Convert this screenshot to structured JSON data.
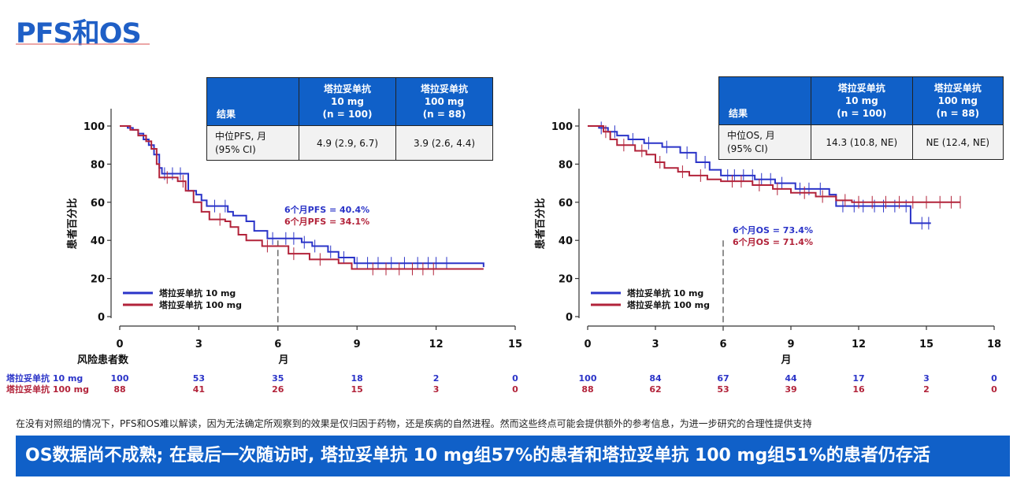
{
  "page": {
    "title": "PFS和OS",
    "note": "在没有对照组的情况下，PFS和OS难以解读，因为无法确定所观察到的效果是仅归因于药物，还是疾病的自然进程。然而这些终点可能会提供额外的参考信息，为进一步研究的合理性提供支持",
    "banner": "OS数据尚不成熟; 在最后一次随访时, 塔拉妥单抗 10 mg组57%的患者和塔拉妥单抗 100 mg组51%的患者仍存活"
  },
  "colors": {
    "blue": "#2b34c8",
    "red": "#b2233a",
    "header": "#1060c8"
  },
  "pfs_table": {
    "col0": "结果",
    "col1": [
      "塔拉妥单抗",
      "10 mg",
      "(n = 100)"
    ],
    "col2": [
      "塔拉妥单抗",
      "100 mg",
      "(n = 88)"
    ],
    "row_label": [
      "中位PFS, 月",
      "(95% CI)"
    ],
    "v1": "4.9 (2.9, 6.7)",
    "v2": "3.9 (2.6, 4.4)"
  },
  "os_table": {
    "col0": "结果",
    "col1": [
      "塔拉妥单抗",
      "10 mg",
      "(n = 100)"
    ],
    "col2": [
      "塔拉妥单抗",
      "100 mg",
      "(n = 88)"
    ],
    "row_label": [
      "中位OS, 月",
      "(95% CI)"
    ],
    "v1": "14.3 (10.8, NE)",
    "v2": "NE (12.4, NE)"
  },
  "chart_data": [
    {
      "type": "line",
      "name": "PFS",
      "ylabel": "患者百分比",
      "xlabel": "月",
      "xlim": [
        0,
        15
      ],
      "ylim": [
        0,
        110
      ],
      "xticks": [
        0,
        3,
        6,
        9,
        12,
        15
      ],
      "yticks": [
        0,
        20,
        40,
        60,
        80,
        100
      ],
      "legend": [
        "塔拉妥单抗 10 mg",
        "塔拉妥单抗 100 mg"
      ],
      "legend_position": "bottom-left",
      "annotation_lines": [
        "6个月PFS = 40.4%",
        "6个月PFS = 34.1%"
      ],
      "reference_x": 6,
      "series": [
        {
          "name": "塔拉妥单抗 10 mg",
          "points": [
            [
              0,
              100
            ],
            [
              0.3,
              99
            ],
            [
              0.5,
              98
            ],
            [
              0.7,
              96
            ],
            [
              0.9,
              93
            ],
            [
              1.1,
              90
            ],
            [
              1.3,
              85
            ],
            [
              1.5,
              78
            ],
            [
              1.6,
              75
            ],
            [
              2.5,
              75
            ],
            [
              2.6,
              66
            ],
            [
              2.9,
              64
            ],
            [
              3.1,
              61
            ],
            [
              3.3,
              58
            ],
            [
              4.1,
              55
            ],
            [
              4.3,
              53
            ],
            [
              4.8,
              50
            ],
            [
              5.1,
              45
            ],
            [
              5.6,
              41
            ],
            [
              6.9,
              39
            ],
            [
              7.3,
              37
            ],
            [
              7.9,
              34
            ],
            [
              8.3,
              31
            ],
            [
              8.9,
              28
            ],
            [
              13.8,
              26
            ]
          ],
          "censors": [
            1.7,
            2.0,
            2.3,
            3.6,
            4.0,
            5.8,
            6.3,
            6.6,
            7.0,
            7.4,
            8.0,
            8.5,
            9.0,
            9.4,
            9.8,
            10.3,
            10.8,
            11.3,
            11.7,
            12.0,
            12.4
          ]
        },
        {
          "name": "塔拉妥单抗 100 mg",
          "points": [
            [
              0,
              100
            ],
            [
              0.4,
              98
            ],
            [
              0.7,
              95
            ],
            [
              1.0,
              92
            ],
            [
              1.2,
              88
            ],
            [
              1.4,
              80
            ],
            [
              1.5,
              73
            ],
            [
              2.2,
              71
            ],
            [
              2.5,
              66
            ],
            [
              2.8,
              60
            ],
            [
              3.1,
              55
            ],
            [
              3.4,
              51
            ],
            [
              4.0,
              50
            ],
            [
              4.2,
              47
            ],
            [
              4.5,
              43
            ],
            [
              4.8,
              40
            ],
            [
              5.4,
              37
            ],
            [
              6.4,
              33
            ],
            [
              7.2,
              30
            ],
            [
              8.3,
              28
            ],
            [
              8.8,
              25
            ],
            [
              13.8,
              25
            ]
          ],
          "censors": [
            1.8,
            2.4,
            3.8,
            5.6,
            6.6,
            7.6,
            9.6,
            10.1,
            10.6,
            11.1,
            11.5,
            11.9
          ]
        }
      ],
      "risk_table": {
        "header": "风险患者数",
        "rows": [
          {
            "label": "塔拉妥单抗 10 mg",
            "values": [
              100,
              53,
              35,
              18,
              2,
              0
            ]
          },
          {
            "label": "塔拉妥单抗 100 mg",
            "values": [
              88,
              41,
              26,
              15,
              3,
              0
            ]
          }
        ]
      }
    },
    {
      "type": "line",
      "name": "OS",
      "ylabel": "患者百分比",
      "xlabel": "月",
      "xlim": [
        0,
        18
      ],
      "ylim": [
        0,
        110
      ],
      "xticks": [
        0,
        3,
        6,
        9,
        12,
        15,
        18
      ],
      "yticks": [
        0,
        20,
        40,
        60,
        80,
        100
      ],
      "legend": [
        "塔拉妥单抗 10 mg",
        "塔拉妥单抗 100 mg"
      ],
      "legend_position": "bottom-left",
      "annotation_lines": [
        "6个月OS = 73.4%",
        "6个月OS = 71.4%"
      ],
      "reference_x": 6,
      "series": [
        {
          "name": "塔拉妥单抗 10 mg",
          "points": [
            [
              0,
              100
            ],
            [
              0.5,
              99
            ],
            [
              0.9,
              97
            ],
            [
              1.3,
              95
            ],
            [
              1.8,
              93
            ],
            [
              2.5,
              91
            ],
            [
              3.3,
              89
            ],
            [
              4.1,
              86
            ],
            [
              4.8,
              81
            ],
            [
              5.4,
              77
            ],
            [
              5.9,
              74
            ],
            [
              7.4,
              72
            ],
            [
              8.3,
              70
            ],
            [
              9.2,
              67
            ],
            [
              10.7,
              64
            ],
            [
              11.0,
              58
            ],
            [
              14.2,
              58
            ],
            [
              14.3,
              49
            ],
            [
              15.2,
              49
            ]
          ],
          "censors": [
            0.6,
            1.2,
            2.0,
            2.7,
            3.5,
            4.4,
            5.2,
            6.2,
            6.5,
            6.9,
            7.3,
            7.7,
            8.1,
            8.6,
            9.4,
            9.8,
            10.3,
            11.3,
            11.8,
            12.2,
            12.7,
            13.1,
            13.6,
            14.1,
            14.8,
            15.1
          ]
        },
        {
          "name": "塔拉妥单抗 100 mg",
          "points": [
            [
              0,
              100
            ],
            [
              0.7,
              97
            ],
            [
              1.0,
              93
            ],
            [
              1.3,
              90
            ],
            [
              2.1,
              87
            ],
            [
              2.6,
              85
            ],
            [
              3.0,
              81
            ],
            [
              3.4,
              78
            ],
            [
              4.0,
              76
            ],
            [
              4.5,
              74
            ],
            [
              5.3,
              72
            ],
            [
              5.9,
              71
            ],
            [
              7.3,
              69
            ],
            [
              8.2,
              67
            ],
            [
              9.0,
              65
            ],
            [
              10.1,
              63
            ],
            [
              11.0,
              61
            ],
            [
              11.7,
              60
            ],
            [
              16.5,
              60
            ]
          ],
          "censors": [
            0.8,
            1.6,
            2.4,
            3.2,
            4.2,
            5.0,
            6.4,
            6.8,
            7.6,
            8.4,
            9.6,
            10.4,
            11.4,
            12.0,
            12.6,
            13.2,
            13.8,
            14.4,
            15.0,
            15.6,
            16.1,
            16.5
          ]
        }
      ],
      "risk_table": {
        "header": "",
        "rows": [
          {
            "label": "塔拉妥单抗 10 mg",
            "values": [
              100,
              84,
              67,
              44,
              17,
              3,
              0
            ]
          },
          {
            "label": "塔拉妥单抗 100 mg",
            "values": [
              88,
              62,
              53,
              39,
              16,
              2,
              0
            ]
          }
        ]
      }
    }
  ]
}
